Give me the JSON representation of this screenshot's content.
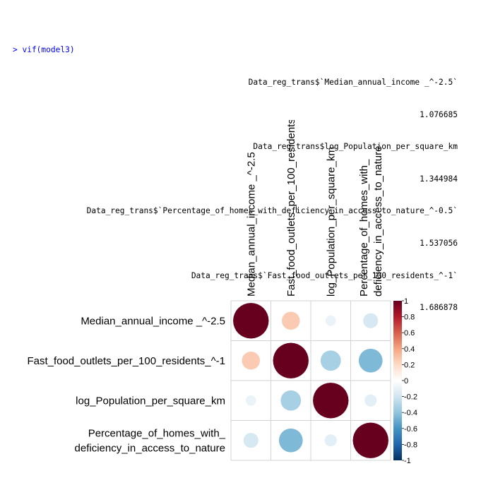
{
  "console": {
    "command": "> vif(model3)",
    "lines": [
      "Data_reg_trans$`Median_annual_income _^-2.5`",
      "1.076685",
      "Data_reg_trans$log_Population_per_square_km",
      "1.344984",
      "Data_reg_trans$`Percentage_of_homes_with_deficiency_in_access_to_nature_^-0.5`",
      "1.537056",
      "Data_reg_trans$`Fast_food_outlets_per_100_residents_^-1`",
      "1.686878"
    ]
  },
  "chart_data": {
    "type": "heatmap",
    "variables": [
      "Median_annual_income _^-2.5",
      "Fast_food_outlets_per_100_residents_^-1",
      "log_Population_per_square_km",
      "Percentage_of_homes_with_ deficiency_in_access_to_nature"
    ],
    "row_labels": [
      [
        "Median_annual_income _^-2.5"
      ],
      [
        "Fast_food_outlets_per_100_residents_^-1"
      ],
      [
        "log_Population_per_square_km"
      ],
      [
        "Percentage_of_homes_with_",
        "deficiency_in_access_to_nature"
      ]
    ],
    "col_labels": [
      [
        "Median_annual_income _^-2.5"
      ],
      [
        "Fast_food_outlets_per_100_residents_^-1"
      ],
      [
        "log_Population_per_square_km"
      ],
      [
        "Percentage_of_homes_with_",
        "deficiency_in_access_to_nature"
      ]
    ],
    "matrix": [
      [
        1.0,
        0.26,
        -0.09,
        -0.18
      ],
      [
        0.26,
        1.0,
        -0.33,
        -0.45
      ],
      [
        -0.09,
        -0.33,
        1.0,
        -0.12
      ],
      [
        -0.18,
        -0.45,
        -0.12,
        1.0
      ]
    ],
    "colorbar": {
      "range": [
        -1,
        1
      ],
      "ticks": [
        1,
        0.8,
        0.6,
        0.4,
        0.2,
        0,
        -0.2,
        -0.4,
        -0.6,
        -0.8,
        -1
      ],
      "tick_labels": [
        "1",
        "0.8",
        "0.6",
        "0.4",
        "0.2",
        "0",
        "-0.2",
        "-0.4",
        "-0.6",
        "-0.8",
        "-1"
      ],
      "colors": [
        "#053061",
        "#2166AC",
        "#4393C3",
        "#92C5DE",
        "#D1E5F0",
        "#FFFFFF",
        "#FDDBC7",
        "#F4A582",
        "#D6604D",
        "#B2182B",
        "#67001F"
      ]
    }
  }
}
